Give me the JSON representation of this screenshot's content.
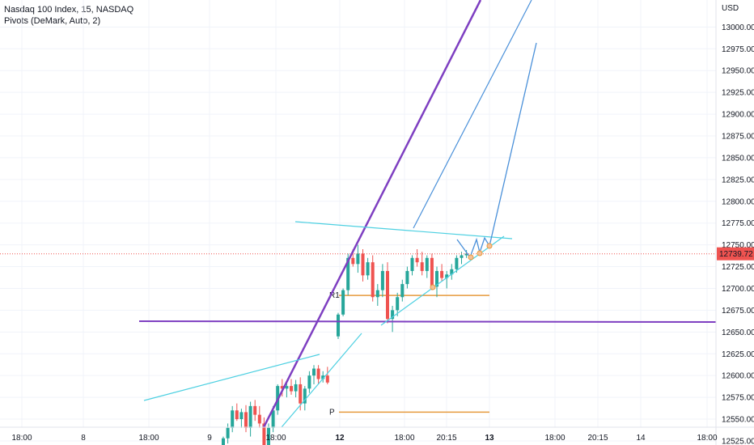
{
  "legend": {
    "symbol_line": "Nasdaq 100 Index, 15, NASDAQ",
    "indicator_line": "Pivots (DeMark, Auto, 2)"
  },
  "currency": "USD",
  "price_badge": "12739.72",
  "colors": {
    "up": "#26a69a",
    "down": "#ef5350",
    "trend_purple": "#7e3fc1",
    "trend_cyan": "#4dd0e1",
    "projection_blue": "#4a90d9",
    "pivot_orange": "#e69a3c",
    "price_line": "#ef5350",
    "grid": "#f0f3fa"
  },
  "chart_data": {
    "type": "candlestick",
    "y_axis": {
      "ticks": [
        12525,
        12550,
        12575,
        12600,
        12625,
        12650,
        12675,
        12700,
        12725,
        12750,
        12775,
        12800,
        12825,
        12850,
        12875,
        12900,
        12925,
        12950,
        12975,
        13000
      ],
      "tick_labels": [
        "12525.00",
        "12550.00",
        "12575.00",
        "12600.00",
        "12625.00",
        "12650.00",
        "12675.00",
        "12700.00",
        "12725.00",
        "12750.00",
        "12775.00",
        "12800.00",
        "12825.00",
        "12850.00",
        "12875.00",
        "12900.00",
        "12925.00",
        "12950.00",
        "12975.00",
        "13000.00"
      ],
      "ylim": [
        12515,
        13025
      ]
    },
    "x_axis": {
      "tick_labels": [
        "18:00",
        "8",
        "18:00",
        "9",
        "18:00",
        "12",
        "18:00",
        "20:15",
        "13",
        "18:00",
        "20:15",
        "14",
        "18:00"
      ],
      "bold_labels": [
        "12",
        "13"
      ]
    },
    "last_price": 12739.72,
    "pivot_levels": [
      {
        "label": "R1",
        "value": 12692
      },
      {
        "label": "P",
        "value": 12558
      }
    ],
    "candles": [
      [
        12520,
        12530,
        12510,
        12528
      ],
      [
        12528,
        12545,
        12522,
        12540
      ],
      [
        12540,
        12565,
        12535,
        12560
      ],
      [
        12560,
        12568,
        12548,
        12550
      ],
      [
        12550,
        12562,
        12540,
        12558
      ],
      [
        12558,
        12566,
        12535,
        12540
      ],
      [
        12540,
        12570,
        12530,
        12565
      ],
      [
        12565,
        12572,
        12548,
        12555
      ],
      [
        12555,
        12565,
        12540,
        12545
      ],
      [
        12545,
        12552,
        12512,
        12520
      ],
      [
        12520,
        12545,
        12515,
        12540
      ],
      [
        12540,
        12565,
        12535,
        12560
      ],
      [
        12560,
        12590,
        12555,
        12588
      ],
      [
        12588,
        12596,
        12576,
        12585
      ],
      [
        12585,
        12592,
        12575,
        12588
      ],
      [
        12588,
        12596,
        12578,
        12582
      ],
      [
        12582,
        12595,
        12575,
        12590
      ],
      [
        12590,
        12598,
        12560,
        12568
      ],
      [
        12568,
        12588,
        12560,
        12585
      ],
      [
        12585,
        12605,
        12580,
        12600
      ],
      [
        12600,
        12612,
        12590,
        12608
      ],
      [
        12608,
        12612,
        12590,
        12596
      ],
      [
        12596,
        12605,
        12592,
        12600
      ],
      [
        12600,
        12610,
        12590,
        12592
      ],
      [
        12645,
        12672,
        12642,
        12670
      ],
      [
        12670,
        12700,
        12668,
        12698
      ],
      [
        12698,
        12740,
        12692,
        12735
      ],
      [
        12735,
        12745,
        12725,
        12728
      ],
      [
        12728,
        12750,
        12718,
        12740
      ],
      [
        12740,
        12745,
        12708,
        12715
      ],
      [
        12715,
        12735,
        12710,
        12730
      ],
      [
        12730,
        12738,
        12685,
        12690
      ],
      [
        12690,
        12705,
        12680,
        12698
      ],
      [
        12698,
        12728,
        12690,
        12720
      ],
      [
        12720,
        12730,
        12660,
        12665
      ],
      [
        12665,
        12680,
        12650,
        12675
      ],
      [
        12675,
        12695,
        12668,
        12690
      ],
      [
        12690,
        12710,
        12685,
        12705
      ],
      [
        12705,
        12725,
        12700,
        12720
      ],
      [
        12720,
        12738,
        12715,
        12735
      ],
      [
        12735,
        12745,
        12725,
        12730
      ],
      [
        12730,
        12742,
        12715,
        12720
      ],
      [
        12720,
        12738,
        12712,
        12735
      ],
      [
        12735,
        12740,
        12698,
        12702
      ],
      [
        12702,
        12725,
        12690,
        12720
      ],
      [
        12720,
        12728,
        12708,
        12712
      ],
      [
        12712,
        12720,
        12700,
        12716
      ],
      [
        12716,
        12728,
        12710,
        12722
      ],
      [
        12722,
        12738,
        12718,
        12735
      ],
      [
        12735,
        12742,
        12728,
        12738
      ],
      [
        12738,
        12744,
        12735,
        12740
      ]
    ]
  }
}
